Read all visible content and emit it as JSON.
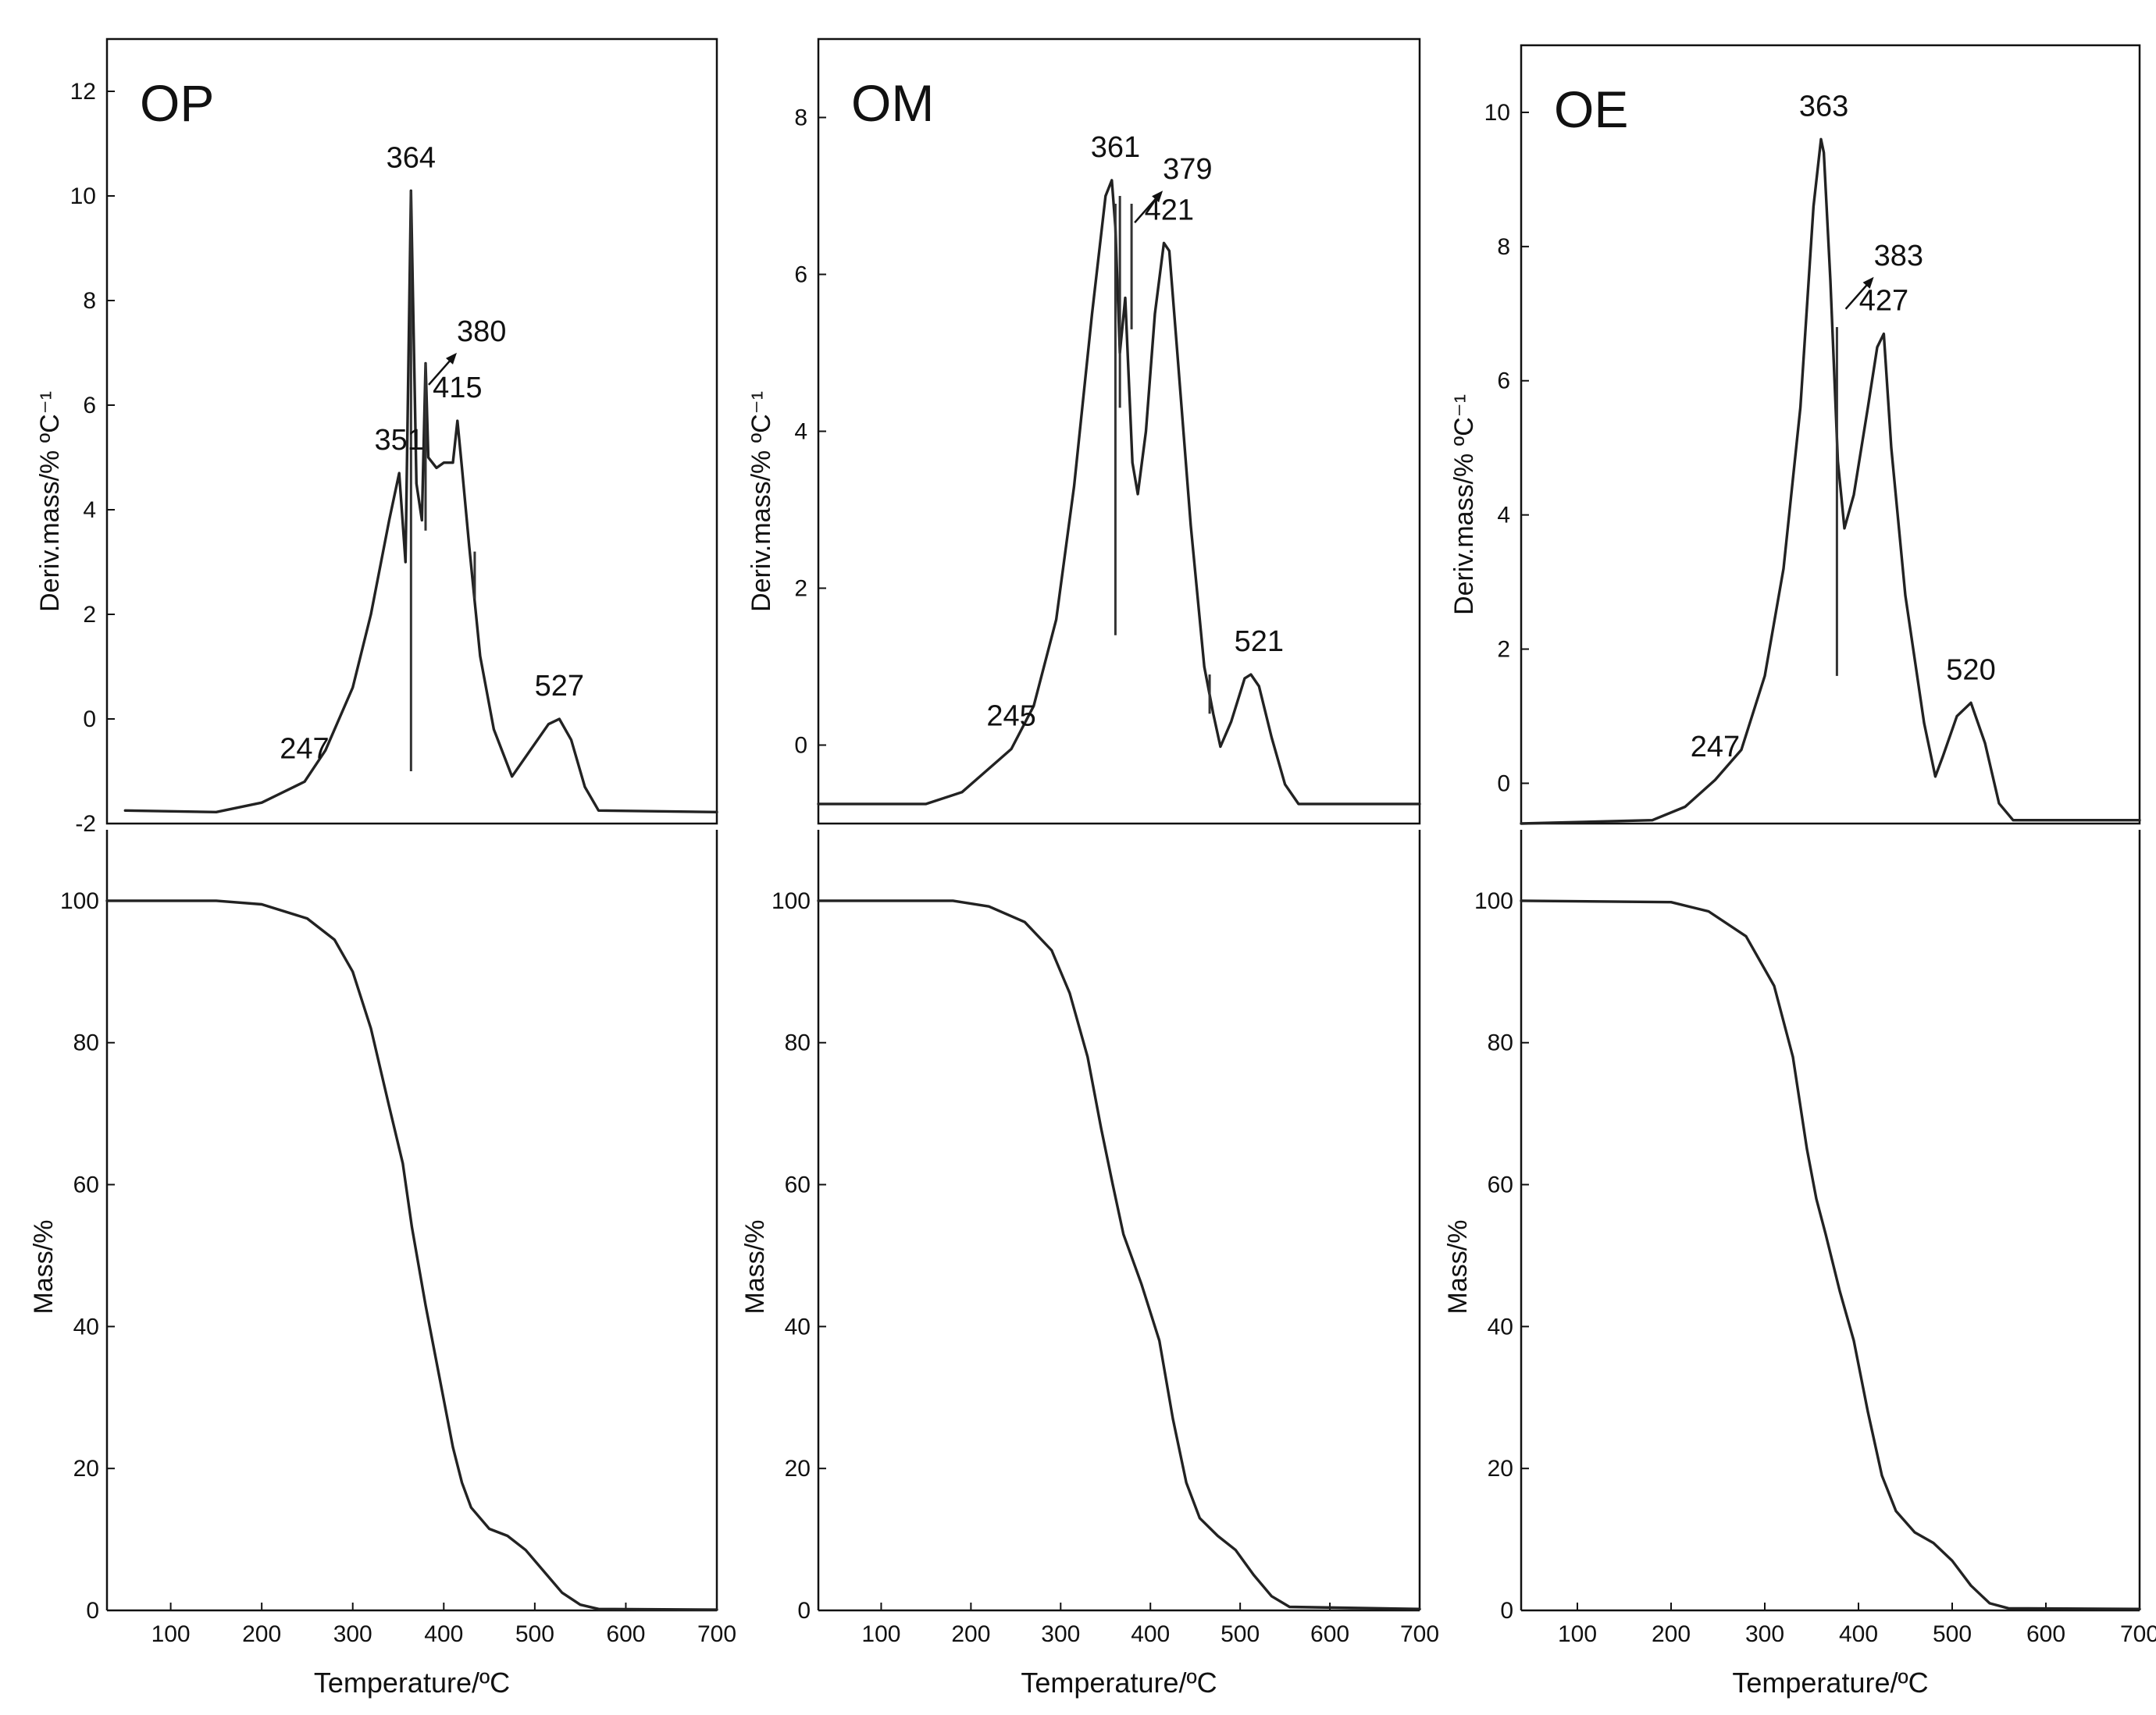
{
  "chart_data": [
    {
      "id": "OP",
      "type": "line",
      "title": "OP",
      "dtg": {
        "ylabel": "Deriv.mass/% ºC⁻¹",
        "ylim": [
          -2,
          13
        ],
        "yticks": [
          -2,
          0,
          2,
          4,
          6,
          8,
          10,
          12
        ],
        "curve": [
          [
            50,
            -1.75
          ],
          [
            150,
            -1.78
          ],
          [
            200,
            -1.6
          ],
          [
            247,
            -1.2
          ],
          [
            270,
            -0.6
          ],
          [
            300,
            0.6
          ],
          [
            320,
            2.0
          ],
          [
            340,
            3.8
          ],
          [
            351,
            4.7
          ],
          [
            358,
            3.0
          ],
          [
            364,
            10.1
          ],
          [
            370,
            4.5
          ],
          [
            376,
            3.8
          ],
          [
            380,
            6.8
          ],
          [
            383,
            5.0
          ],
          [
            392,
            4.8
          ],
          [
            400,
            4.9
          ],
          [
            410,
            4.9
          ],
          [
            415,
            5.7
          ],
          [
            420,
            4.8
          ],
          [
            428,
            3.3
          ],
          [
            440,
            1.2
          ],
          [
            455,
            -0.2
          ],
          [
            475,
            -1.1
          ],
          [
            495,
            -0.6
          ],
          [
            515,
            -0.1
          ],
          [
            527,
            0.0
          ],
          [
            540,
            -0.4
          ],
          [
            555,
            -1.3
          ],
          [
            570,
            -1.75
          ],
          [
            700,
            -1.78
          ]
        ],
        "spikes": [
          [
            364,
            -1.0,
            10.1
          ],
          [
            380,
            3.6,
            6.8
          ],
          [
            434,
            2.3,
            3.2
          ]
        ],
        "peaks": [
          {
            "x": 247,
            "y": -1.2,
            "label": "247"
          },
          {
            "x": 351,
            "y": 4.7,
            "label": "351"
          },
          {
            "x": 364,
            "y": 10.1,
            "label": "364"
          },
          {
            "x": 380,
            "y": 6.3,
            "label": "380",
            "arrow": true
          },
          {
            "x": 415,
            "y": 5.7,
            "label": "415"
          },
          {
            "x": 527,
            "y": 0.0,
            "label": "527"
          }
        ]
      },
      "tg": {
        "ylabel": "Mass/%",
        "xlabel": "Temperature/ºC",
        "ylim": [
          0,
          110
        ],
        "yticks": [
          0,
          20,
          40,
          60,
          80,
          100
        ],
        "xlim": [
          30,
          700
        ],
        "xticks": [
          100,
          200,
          300,
          400,
          500,
          600,
          700
        ],
        "curve": [
          [
            30,
            100
          ],
          [
            150,
            100
          ],
          [
            200,
            99.5
          ],
          [
            250,
            97.5
          ],
          [
            280,
            94.5
          ],
          [
            300,
            90
          ],
          [
            320,
            82
          ],
          [
            340,
            71
          ],
          [
            355,
            63
          ],
          [
            365,
            54
          ],
          [
            380,
            43
          ],
          [
            395,
            33
          ],
          [
            410,
            23
          ],
          [
            420,
            18
          ],
          [
            430,
            14.5
          ],
          [
            450,
            11.5
          ],
          [
            470,
            10.5
          ],
          [
            490,
            8.5
          ],
          [
            510,
            5.5
          ],
          [
            530,
            2.5
          ],
          [
            550,
            0.8
          ],
          [
            570,
            0.2
          ],
          [
            700,
            0.1
          ]
        ]
      }
    },
    {
      "id": "OM",
      "type": "line",
      "title": "OM",
      "dtg": {
        "ylabel": "Deriv.mass/% ºC⁻¹",
        "ylim": [
          -1,
          9
        ],
        "yticks": [
          0,
          2,
          4,
          6,
          8
        ],
        "curve": [
          [
            30,
            -0.75
          ],
          [
            150,
            -0.75
          ],
          [
            190,
            -0.6
          ],
          [
            220,
            -0.3
          ],
          [
            245,
            -0.05
          ],
          [
            270,
            0.5
          ],
          [
            295,
            1.6
          ],
          [
            315,
            3.3
          ],
          [
            335,
            5.5
          ],
          [
            350,
            7.0
          ],
          [
            357,
            7.2
          ],
          [
            361,
            6.6
          ],
          [
            366,
            5.0
          ],
          [
            372,
            5.7
          ],
          [
            380,
            3.6
          ],
          [
            386,
            3.2
          ],
          [
            395,
            4.0
          ],
          [
            405,
            5.5
          ],
          [
            415,
            6.4
          ],
          [
            421,
            6.3
          ],
          [
            430,
            5.0
          ],
          [
            445,
            2.8
          ],
          [
            460,
            1.0
          ],
          [
            470,
            0.4
          ],
          [
            478,
            -0.02
          ],
          [
            490,
            0.3
          ],
          [
            505,
            0.85
          ],
          [
            512,
            0.9
          ],
          [
            521,
            0.75
          ],
          [
            535,
            0.1
          ],
          [
            550,
            -0.5
          ],
          [
            565,
            -0.75
          ],
          [
            700,
            -0.75
          ]
        ],
        "spikes": [
          [
            361,
            1.4,
            6.9
          ],
          [
            366,
            4.3,
            7.0
          ],
          [
            379,
            5.3,
            6.9
          ],
          [
            466,
            0.4,
            0.9
          ]
        ],
        "peaks": [
          {
            "x": 245,
            "y": -0.05,
            "label": "245"
          },
          {
            "x": 361,
            "y": 7.2,
            "label": "361"
          },
          {
            "x": 379,
            "y": 6.6,
            "label": "379",
            "arrow": true
          },
          {
            "x": 421,
            "y": 6.4,
            "label": "421"
          },
          {
            "x": 521,
            "y": 0.9,
            "label": "521"
          }
        ]
      },
      "tg": {
        "ylabel": "Mass/%",
        "xlabel": "Temperature/ºC",
        "ylim": [
          0,
          110
        ],
        "yticks": [
          0,
          20,
          40,
          60,
          80,
          100
        ],
        "xlim": [
          30,
          700
        ],
        "xticks": [
          100,
          200,
          300,
          400,
          500,
          600,
          700
        ],
        "curve": [
          [
            30,
            100
          ],
          [
            180,
            100
          ],
          [
            220,
            99.2
          ],
          [
            260,
            97
          ],
          [
            290,
            93
          ],
          [
            310,
            87
          ],
          [
            330,
            78
          ],
          [
            345,
            68
          ],
          [
            358,
            60
          ],
          [
            370,
            53
          ],
          [
            390,
            46
          ],
          [
            410,
            38
          ],
          [
            425,
            27
          ],
          [
            440,
            18
          ],
          [
            455,
            13
          ],
          [
            475,
            10.5
          ],
          [
            495,
            8.5
          ],
          [
            515,
            5
          ],
          [
            535,
            2
          ],
          [
            555,
            0.5
          ],
          [
            700,
            0.2
          ]
        ]
      }
    },
    {
      "id": "OE",
      "type": "line",
      "title": "OE",
      "dtg": {
        "ylabel": "Deriv.mass/% ºC⁻¹",
        "ylim": [
          -0.6,
          11
        ],
        "yticks": [
          0,
          2,
          4,
          6,
          8,
          10
        ],
        "curve": [
          [
            40,
            -0.6
          ],
          [
            180,
            -0.55
          ],
          [
            215,
            -0.35
          ],
          [
            247,
            0.05
          ],
          [
            275,
            0.5
          ],
          [
            300,
            1.6
          ],
          [
            320,
            3.2
          ],
          [
            338,
            5.6
          ],
          [
            352,
            8.6
          ],
          [
            360,
            9.6
          ],
          [
            363,
            9.4
          ],
          [
            370,
            7.5
          ],
          [
            378,
            4.8
          ],
          [
            385,
            3.8
          ],
          [
            395,
            4.3
          ],
          [
            410,
            5.6
          ],
          [
            420,
            6.5
          ],
          [
            427,
            6.7
          ],
          [
            435,
            5.0
          ],
          [
            450,
            2.8
          ],
          [
            470,
            0.9
          ],
          [
            482,
            0.1
          ],
          [
            490,
            0.4
          ],
          [
            505,
            1.0
          ],
          [
            520,
            1.2
          ],
          [
            535,
            0.6
          ],
          [
            550,
            -0.3
          ],
          [
            565,
            -0.55
          ],
          [
            700,
            -0.55
          ]
        ],
        "spikes": [
          [
            377,
            1.6,
            6.8
          ]
        ],
        "peaks": [
          {
            "x": 247,
            "y": 0.05,
            "label": "247"
          },
          {
            "x": 363,
            "y": 9.6,
            "label": "363"
          },
          {
            "x": 383,
            "y": 7.0,
            "label": "383",
            "arrow": true
          },
          {
            "x": 427,
            "y": 6.7,
            "label": "427"
          },
          {
            "x": 520,
            "y": 1.2,
            "label": "520"
          }
        ]
      },
      "tg": {
        "ylabel": "Mass/%",
        "xlabel": "Temperature/ºC",
        "ylim": [
          0,
          110
        ],
        "yticks": [
          0,
          20,
          40,
          60,
          80,
          100
        ],
        "xlim": [
          40,
          700
        ],
        "xticks": [
          100,
          200,
          300,
          400,
          500,
          600,
          700
        ],
        "curve": [
          [
            40,
            100
          ],
          [
            200,
            99.8
          ],
          [
            240,
            98.5
          ],
          [
            280,
            95
          ],
          [
            310,
            88
          ],
          [
            330,
            78
          ],
          [
            345,
            65
          ],
          [
            355,
            58
          ],
          [
            365,
            53
          ],
          [
            380,
            45
          ],
          [
            395,
            38
          ],
          [
            410,
            28
          ],
          [
            425,
            19
          ],
          [
            440,
            14
          ],
          [
            460,
            11
          ],
          [
            480,
            9.5
          ],
          [
            500,
            7
          ],
          [
            520,
            3.5
          ],
          [
            540,
            1
          ],
          [
            560,
            0.3
          ],
          [
            700,
            0.2
          ]
        ]
      }
    }
  ]
}
